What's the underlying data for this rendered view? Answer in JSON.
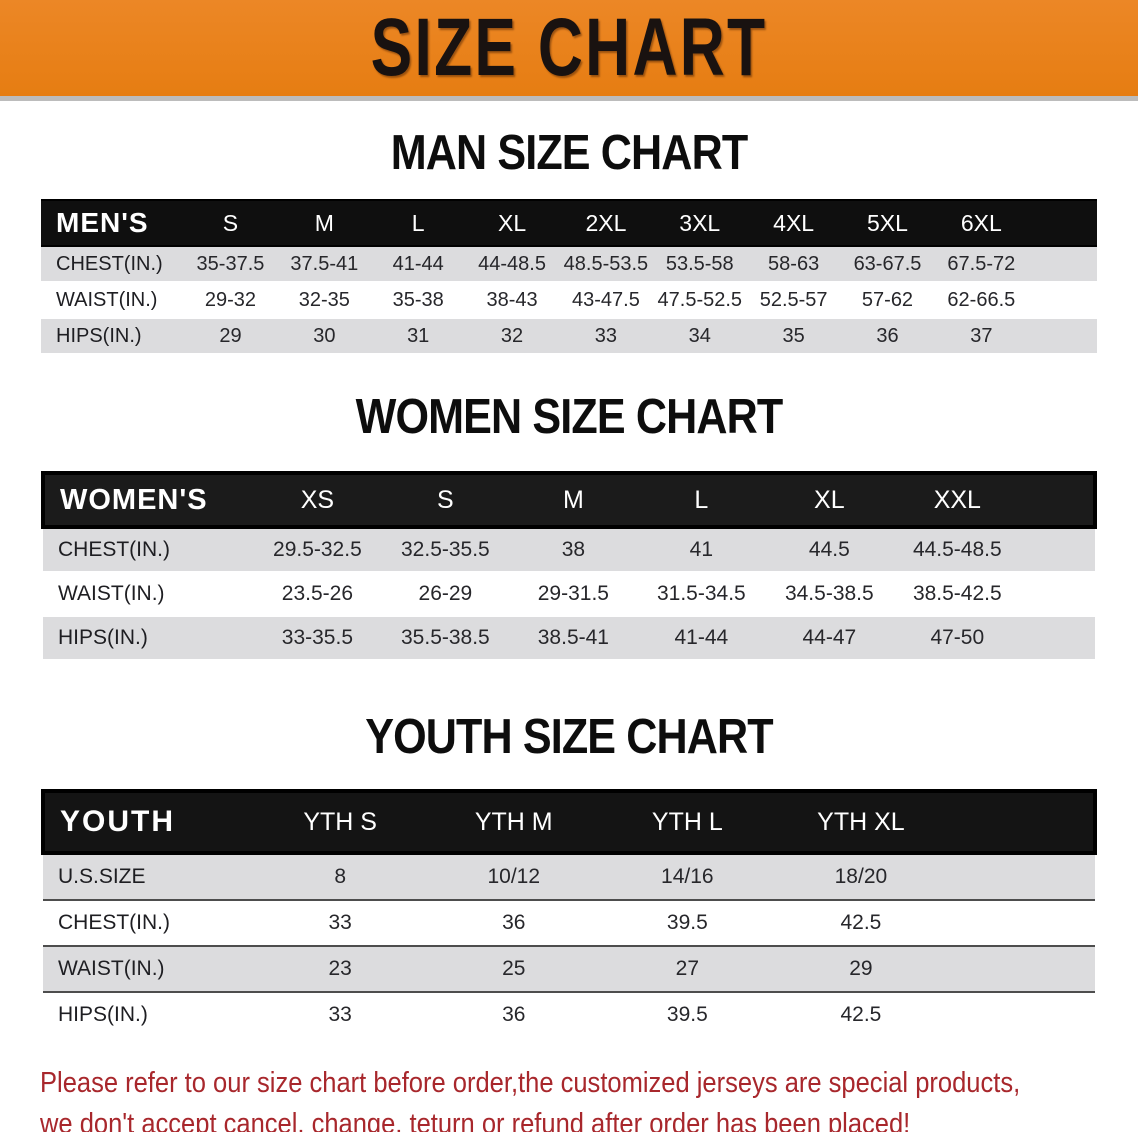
{
  "banner": {
    "title": "SIZE CHART"
  },
  "colors": {
    "banner_background": "#e8811c",
    "header_bar": "#141414",
    "row_stripe": "#dcdcde",
    "notice_text": "#a8272c"
  },
  "sections": [
    {
      "title": "MAN SIZE CHART",
      "header_label": "MEN'S",
      "columns": [
        "S",
        "M",
        "L",
        "XL",
        "2XL",
        "3XL",
        "4XL",
        "5XL",
        "6XL"
      ],
      "rows": [
        {
          "label": "CHEST(IN.)",
          "values": [
            "35-37.5",
            "37.5-41",
            "41-44",
            "44-48.5",
            "48.5-53.5",
            "53.5-58",
            "58-63",
            "63-67.5",
            "67.5-72"
          ]
        },
        {
          "label": "WAIST(IN.)",
          "values": [
            "29-32",
            "32-35",
            "35-38",
            "38-43",
            "43-47.5",
            "47.5-52.5",
            "52.5-57",
            "57-62",
            "62-66.5"
          ]
        },
        {
          "label": "HIPS(IN.)",
          "values": [
            "29",
            "30",
            "31",
            "32",
            "33",
            "34",
            "35",
            "36",
            "37"
          ]
        }
      ]
    },
    {
      "title": "WOMEN SIZE CHART",
      "header_label": "WOMEN'S",
      "columns": [
        "XS",
        "S",
        "M",
        "L",
        "XL",
        "XXL"
      ],
      "rows": [
        {
          "label": "CHEST(IN.)",
          "values": [
            "29.5-32.5",
            "32.5-35.5",
            "38",
            "41",
            "44.5",
            "44.5-48.5"
          ]
        },
        {
          "label": "WAIST(IN.)",
          "values": [
            "23.5-26",
            "26-29",
            "29-31.5",
            "31.5-34.5",
            "34.5-38.5",
            "38.5-42.5"
          ]
        },
        {
          "label": "HIPS(IN.)",
          "values": [
            "33-35.5",
            "35.5-38.5",
            "38.5-41",
            "41-44",
            "44-47",
            "47-50"
          ]
        }
      ]
    },
    {
      "title": "YOUTH SIZE CHART",
      "header_label": "YOUTH",
      "columns": [
        "YTH S",
        "YTH M",
        "YTH L",
        "YTH XL"
      ],
      "rows": [
        {
          "label": "U.S.SIZE",
          "values": [
            "8",
            "10/12",
            "14/16",
            "18/20"
          ]
        },
        {
          "label": "CHEST(IN.)",
          "values": [
            "33",
            "36",
            "39.5",
            "42.5"
          ]
        },
        {
          "label": "WAIST(IN.)",
          "values": [
            "23",
            "25",
            "27",
            "29"
          ]
        },
        {
          "label": "HIPS(IN.)",
          "values": [
            "33",
            "36",
            "39.5",
            "42.5"
          ]
        }
      ]
    }
  ],
  "footer": {
    "line1": "Please refer to our size chart before order,the customized jerseys are special products,",
    "line2": "we don't accept cancel, change, teturn or refund after order has been placed!"
  }
}
